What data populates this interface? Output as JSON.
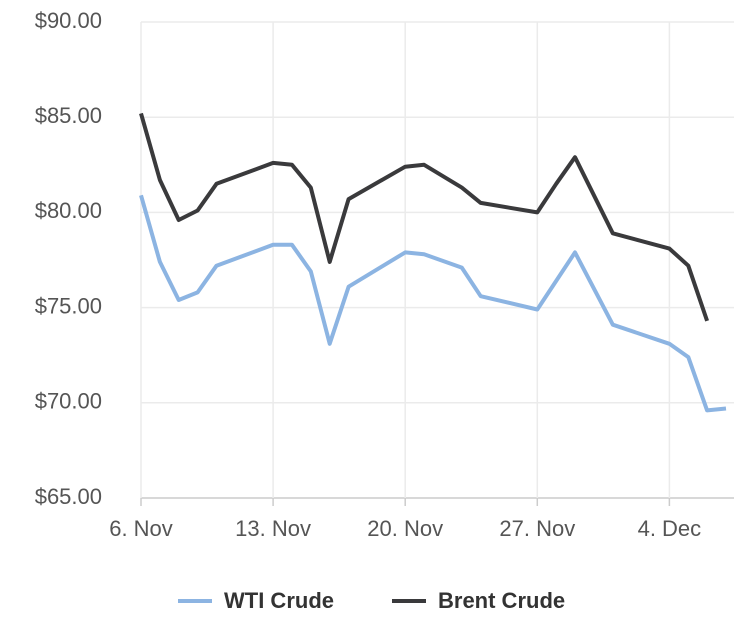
{
  "chart_data": {
    "type": "line",
    "x": [
      "6. Nov",
      "7. Nov",
      "8. Nov",
      "9. Nov",
      "10. Nov",
      "13. Nov",
      "14. Nov",
      "15. Nov",
      "16. Nov",
      "17. Nov",
      "20. Nov",
      "21. Nov",
      "23. Nov",
      "24. Nov",
      "27. Nov",
      "28. Nov",
      "29. Nov",
      "1. Dec",
      "4. Dec",
      "5. Dec",
      "6. Dec",
      "7. Dec"
    ],
    "series": [
      {
        "name": "WTI Crude",
        "color": "#8cb4e2",
        "values": [
          80.9,
          77.4,
          75.4,
          75.8,
          77.2,
          78.3,
          78.3,
          76.9,
          73.1,
          76.1,
          77.9,
          77.8,
          77.1,
          75.6,
          74.9,
          76.4,
          77.9,
          74.1,
          73.1,
          72.4,
          69.6,
          69.7
        ]
      },
      {
        "name": "Brent Crude",
        "color": "#3a3a3c",
        "values": [
          85.2,
          81.7,
          79.6,
          80.1,
          81.5,
          82.6,
          82.5,
          81.3,
          77.4,
          80.7,
          82.4,
          82.5,
          81.3,
          80.5,
          80.0,
          81.5,
          82.9,
          78.9,
          78.1,
          77.2,
          74.3,
          null
        ]
      }
    ],
    "xlim": [
      "6. Nov",
      "7. Dec"
    ],
    "xticks": [
      "6. Nov",
      "13. Nov",
      "20. Nov",
      "27. Nov",
      "4. Dec"
    ],
    "ylim": [
      65,
      90
    ],
    "yticks": [
      {
        "value": 65,
        "label": "$65.00"
      },
      {
        "value": 70,
        "label": "$70.00"
      },
      {
        "value": 75,
        "label": "$75.00"
      },
      {
        "value": 80,
        "label": "$80.00"
      },
      {
        "value": 85,
        "label": "$85.00"
      },
      {
        "value": 90,
        "label": "$90.00"
      }
    ],
    "grid": true,
    "legend": "bottom"
  }
}
